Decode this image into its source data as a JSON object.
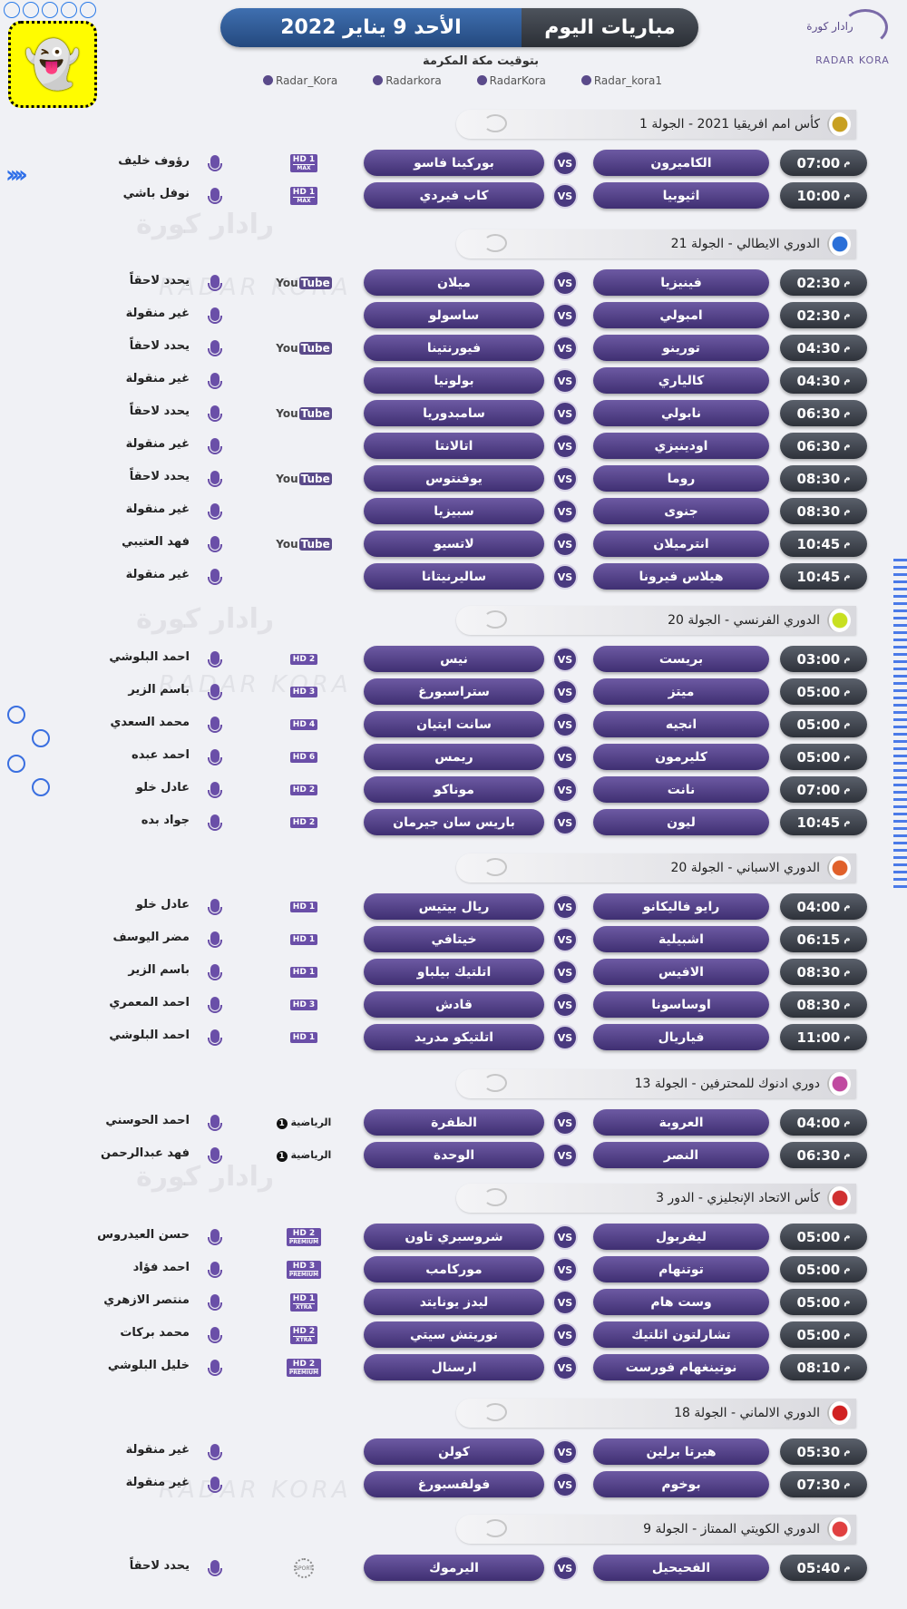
{
  "header": {
    "title": "مباريات اليوم",
    "date": "الأحد 9 يناير 2022",
    "subtitle": "بتوقيت مكة المكرمة"
  },
  "logo": {
    "arabic": "رادار كورة",
    "english": "RADAR KORA"
  },
  "socials": [
    {
      "icon": "twitter-icon",
      "handle": "Radar_Kora"
    },
    {
      "icon": "instagram-icon",
      "handle": "Radarkora"
    },
    {
      "icon": "snapchat-icon",
      "handle": "RadarKora"
    },
    {
      "icon": "telegram-icon",
      "handle": "Radar_kora1"
    }
  ],
  "time_suffix": "م",
  "vs_label": "VS",
  "colors": {
    "pill": "#4f3f88",
    "time_pill": "#3a3f48",
    "banner_blue": "#2d5a96",
    "accent": "#2f6fe8"
  },
  "sections": [
    {
      "title": "كأس امم افريقيا 2021 - الجولة 1",
      "icon": "caf-logo-icon",
      "icon_color": "#c8a020",
      "matches": [
        {
          "time": "07:00",
          "home": "الكاميرون",
          "away": "بوركينا فاسو",
          "channel": {
            "type": "hd",
            "label": "HD 1",
            "sub": "MAX"
          },
          "commentator": "رؤوف خليف"
        },
        {
          "time": "10:00",
          "home": "اثيوبيا",
          "away": "كاب فيردي",
          "channel": {
            "type": "hd",
            "label": "HD 1",
            "sub": "MAX"
          },
          "commentator": "نوفل باشي"
        }
      ]
    },
    {
      "title": "الدوري الايطالي - الجولة 21",
      "icon": "serie-a-logo-icon",
      "icon_color": "#2a6fd8",
      "matches": [
        {
          "time": "02:30",
          "home": "فينيزيا",
          "away": "ميلان",
          "channel": {
            "type": "youtube",
            "label": "You",
            "sub": "Tube"
          },
          "commentator": "يحدد لاحقاً"
        },
        {
          "time": "02:30",
          "home": "امبولي",
          "away": "ساسولو",
          "channel": null,
          "commentator": "غير منقولة"
        },
        {
          "time": "04:30",
          "home": "تورينو",
          "away": "فيورنتينا",
          "channel": {
            "type": "youtube",
            "label": "You",
            "sub": "Tube"
          },
          "commentator": "يحدد لاحقاً"
        },
        {
          "time": "04:30",
          "home": "كالياري",
          "away": "بولونيا",
          "channel": null,
          "commentator": "غير منقولة"
        },
        {
          "time": "06:30",
          "home": "نابولي",
          "away": "سامبدوريا",
          "channel": {
            "type": "youtube",
            "label": "You",
            "sub": "Tube"
          },
          "commentator": "يحدد لاحقاً"
        },
        {
          "time": "06:30",
          "home": "اودينيزي",
          "away": "اتالانتا",
          "channel": null,
          "commentator": "غير منقولة"
        },
        {
          "time": "08:30",
          "home": "روما",
          "away": "يوفنتوس",
          "channel": {
            "type": "youtube",
            "label": "You",
            "sub": "Tube"
          },
          "commentator": "يحدد لاحقاً"
        },
        {
          "time": "08:30",
          "home": "جنوى",
          "away": "سبيزيا",
          "channel": null,
          "commentator": "غير منقولة"
        },
        {
          "time": "10:45",
          "home": "انترميلان",
          "away": "لاتسيو",
          "channel": {
            "type": "youtube",
            "label": "You",
            "sub": "Tube"
          },
          "commentator": "فهد العتيبي"
        },
        {
          "time": "10:45",
          "home": "هيلاس فيرونا",
          "away": "ساليرنيتانا",
          "channel": null,
          "commentator": "غير منقولة"
        }
      ]
    },
    {
      "title": "الدوري الفرنسي - الجولة 20",
      "icon": "ligue-1-logo-icon",
      "icon_color": "#c8e020",
      "matches": [
        {
          "time": "03:00",
          "home": "بريست",
          "away": "نيس",
          "channel": {
            "type": "hd",
            "label": "HD 2",
            "sub": ""
          },
          "commentator": "احمد البلوشي"
        },
        {
          "time": "05:00",
          "home": "ميتز",
          "away": "ستراسبورغ",
          "channel": {
            "type": "hd",
            "label": "HD 3",
            "sub": ""
          },
          "commentator": "باسم الزير"
        },
        {
          "time": "05:00",
          "home": "انجيه",
          "away": "سانت ايتيان",
          "channel": {
            "type": "hd",
            "label": "HD 4",
            "sub": ""
          },
          "commentator": "محمد السعدي"
        },
        {
          "time": "05:00",
          "home": "كليرمون",
          "away": "ريمس",
          "channel": {
            "type": "hd",
            "label": "HD 6",
            "sub": ""
          },
          "commentator": "احمد عبده"
        },
        {
          "time": "07:00",
          "home": "نانت",
          "away": "موناكو",
          "channel": {
            "type": "hd",
            "label": "HD 2",
            "sub": ""
          },
          "commentator": "عادل خلو"
        },
        {
          "time": "10:45",
          "home": "ليون",
          "away": "باريس سان جيرمان",
          "channel": {
            "type": "hd",
            "label": "HD 2",
            "sub": ""
          },
          "commentator": "جواد بده"
        }
      ]
    },
    {
      "title": "الدوري الاسباني - الجولة 20",
      "icon": "laliga-logo-icon",
      "icon_color": "#e0602a",
      "matches": [
        {
          "time": "04:00",
          "home": "رايو فاليكانو",
          "away": "ريال بيتيس",
          "channel": {
            "type": "hd",
            "label": "HD 1",
            "sub": ""
          },
          "commentator": "عادل خلو"
        },
        {
          "time": "06:15",
          "home": "اشبيلية",
          "away": "خيتافي",
          "channel": {
            "type": "hd",
            "label": "HD 1",
            "sub": ""
          },
          "commentator": "مضر اليوسف"
        },
        {
          "time": "08:30",
          "home": "الافيس",
          "away": "اتلتيك بيلباو",
          "channel": {
            "type": "hd",
            "label": "HD 1",
            "sub": ""
          },
          "commentator": "باسم الزير"
        },
        {
          "time": "08:30",
          "home": "اوساسونا",
          "away": "قادش",
          "channel": {
            "type": "hd",
            "label": "HD 3",
            "sub": ""
          },
          "commentator": "احمد المعمري"
        },
        {
          "time": "11:00",
          "home": "فياريال",
          "away": "اتلتيكو مدريد",
          "channel": {
            "type": "hd",
            "label": "HD 1",
            "sub": ""
          },
          "commentator": "احمد البلوشي"
        }
      ]
    },
    {
      "title": "دوري ادنوك للمحترفين - الجولة 13",
      "icon": "adnoc-league-logo-icon",
      "icon_color": "#c04aa0",
      "matches": [
        {
          "time": "04:00",
          "home": "العروبة",
          "away": "الظفرة",
          "channel": {
            "type": "ad",
            "label": "الرياضية",
            "sub": "1"
          },
          "commentator": "احمد الحوسني"
        },
        {
          "time": "06:30",
          "home": "النصر",
          "away": "الوحدة",
          "channel": {
            "type": "ad",
            "label": "الرياضية",
            "sub": "1"
          },
          "commentator": "فهد عبدالرحمن"
        }
      ]
    },
    {
      "title": "كأس الاتحاد الإنجليزي - الدور 3",
      "icon": "fa-cup-logo-icon",
      "icon_color": "#d03030",
      "matches": [
        {
          "time": "05:00",
          "home": "ليفربول",
          "away": "شروسبري تاون",
          "channel": {
            "type": "hd",
            "label": "HD 2",
            "sub": "PREMIUM"
          },
          "commentator": "حسن العيدروس"
        },
        {
          "time": "05:00",
          "home": "توتنهام",
          "away": "موركامب",
          "channel": {
            "type": "hd",
            "label": "HD 3",
            "sub": "PREMIUM"
          },
          "commentator": "احمد فؤاد"
        },
        {
          "time": "05:00",
          "home": "وست هام",
          "away": "ليدز يونايتد",
          "channel": {
            "type": "hd",
            "label": "HD 1",
            "sub": "XTRA"
          },
          "commentator": "منتصر الازهري"
        },
        {
          "time": "05:00",
          "home": "تشارلتون اثلتيك",
          "away": "نوريتش سيتي",
          "channel": {
            "type": "hd",
            "label": "HD 2",
            "sub": "XTRA"
          },
          "commentator": "محمد بركات"
        },
        {
          "time": "08:10",
          "home": "نوتينغهام فورست",
          "away": "ارسنال",
          "channel": {
            "type": "hd",
            "label": "HD 2",
            "sub": "PREMIUM"
          },
          "commentator": "خليل البلوشي"
        }
      ]
    },
    {
      "title": "الدوري الالماني - الجولة 18",
      "icon": "bundesliga-logo-icon",
      "icon_color": "#d02020",
      "matches": [
        {
          "time": "05:30",
          "home": "هيرتا برلين",
          "away": "كولن",
          "channel": null,
          "commentator": "غير منقولة"
        },
        {
          "time": "07:30",
          "home": "بوخوم",
          "away": "فولفسبورغ",
          "channel": null,
          "commentator": "غير منقولة"
        }
      ]
    },
    {
      "title": "الدوري الكويتي الممتاز - الجولة 9",
      "icon": "kuwait-league-logo-icon",
      "icon_color": "#e04040",
      "matches": [
        {
          "time": "05:40",
          "home": "الفحيحيل",
          "away": "اليرموك",
          "channel": {
            "type": "ktv",
            "label": "SPORT",
            "sub": ""
          },
          "commentator": "يحدد لاحقاً"
        }
      ]
    }
  ]
}
